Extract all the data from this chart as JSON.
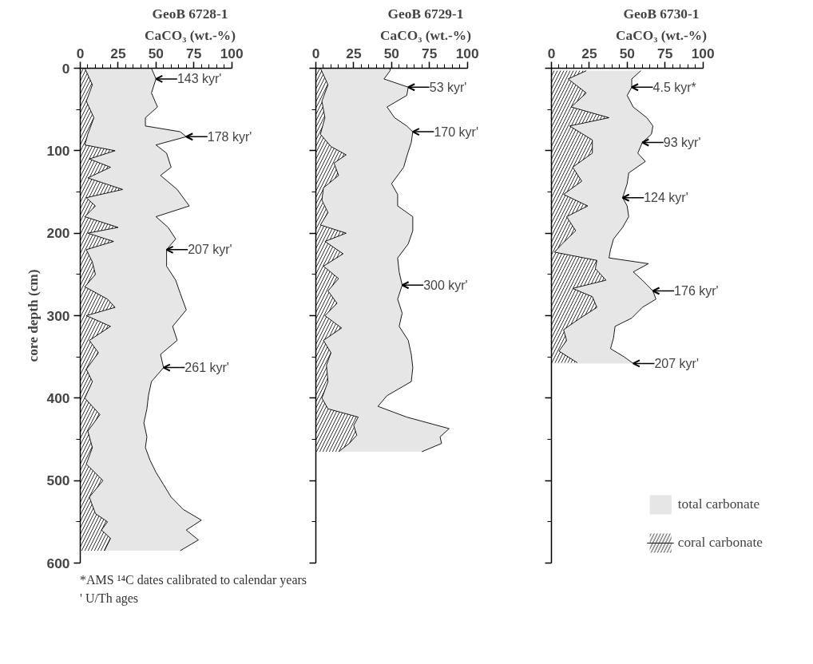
{
  "chart_data": [
    {
      "type": "area",
      "orientation": "horizontal",
      "title": "GeoB 6728-1",
      "xlabel": "CaCO₃ (wt.-%)",
      "ylabel": "core depth (cm)",
      "xlim": [
        0,
        100
      ],
      "xticks": [
        0,
        25,
        50,
        75,
        100
      ],
      "ylim": [
        600,
        0
      ],
      "yticks": [
        0,
        100,
        200,
        300,
        400,
        500,
        600
      ],
      "grid": false,
      "series": [
        {
          "color": "#e6e6e6",
          "x": [
            0,
            13,
            30,
            47,
            60,
            70,
            77,
            83,
            93,
            103,
            120,
            130,
            147,
            167,
            180,
            193,
            207,
            220,
            240,
            257,
            273,
            293,
            313,
            330,
            347,
            363,
            380,
            397,
            413,
            430,
            447,
            460,
            475,
            490,
            505,
            520,
            535,
            548,
            560,
            572,
            585
          ],
          "values": [
            47,
            50,
            47,
            51,
            43,
            43,
            66,
            70,
            50,
            57,
            60,
            53,
            64,
            72,
            50,
            58,
            63,
            57,
            57,
            63,
            66,
            70,
            61,
            64,
            53,
            55,
            47,
            45,
            44,
            42,
            44,
            43,
            46,
            50,
            55,
            60,
            68,
            80,
            70,
            78,
            66
          ]
        },
        {
          "color": "#000000",
          "x": [
            0,
            20,
            40,
            60,
            80,
            93,
            100,
            110,
            120,
            133,
            147,
            157,
            167,
            180,
            193,
            200,
            210,
            220,
            235,
            250,
            265,
            280,
            290,
            300,
            313,
            330,
            345,
            365,
            380,
            400,
            420,
            440,
            460,
            480,
            500,
            520,
            540,
            550,
            560,
            570,
            585
          ],
          "values": [
            3,
            8,
            4,
            9,
            5,
            3,
            23,
            6,
            20,
            5,
            28,
            4,
            10,
            3,
            25,
            5,
            22,
            4,
            8,
            10,
            3,
            18,
            23,
            4,
            20,
            6,
            12,
            4,
            8,
            3,
            13,
            5,
            8,
            4,
            15,
            6,
            10,
            18,
            14,
            20,
            16
          ]
        }
      ],
      "annotations": [
        {
          "text": "143 kyr'",
          "x": 50,
          "y": 13
        },
        {
          "text": "178 kyr'",
          "x": 70,
          "y": 83
        },
        {
          "text": "207 kyr'",
          "x": 57,
          "y": 220
        },
        {
          "text": "261 kyr'",
          "x": 55,
          "y": 363
        },
        "*AMS ¹⁴C dates calibrated to calendar years",
        "' U/Th ages"
      ]
    },
    {
      "type": "area",
      "orientation": "horizontal",
      "title": "GeoB 6729-1",
      "xlabel": "CaCO₃ (wt.-%)",
      "xlim": [
        0,
        100
      ],
      "xticks": [
        0,
        25,
        50,
        75,
        100
      ],
      "ylim": [
        600,
        0
      ],
      "yticks": [
        0,
        100,
        200,
        300,
        400,
        500,
        600
      ],
      "grid": false,
      "tick_labels": "x",
      "series": [
        {
          "color": "#e6e6e6",
          "x": [
            0,
            3,
            13,
            23,
            33,
            47,
            60,
            70,
            77,
            90,
            107,
            120,
            140,
            153,
            167,
            180,
            197,
            213,
            230,
            247,
            263,
            280,
            297,
            313,
            330,
            347,
            363,
            380,
            397,
            410,
            423,
            437,
            447,
            455,
            465
          ],
          "values": [
            49,
            49,
            45,
            61,
            60,
            47,
            52,
            60,
            64,
            63,
            60,
            58,
            50,
            54,
            54,
            64,
            64,
            61,
            54,
            55,
            57,
            54,
            57,
            55,
            61,
            63,
            64,
            63,
            47,
            41,
            60,
            88,
            82,
            83,
            70
          ]
        },
        {
          "color": "#000000",
          "x": [
            0,
            20,
            40,
            60,
            80,
            95,
            105,
            115,
            130,
            145,
            160,
            175,
            190,
            200,
            210,
            225,
            240,
            255,
            270,
            285,
            300,
            315,
            330,
            345,
            360,
            380,
            400,
            413,
            423,
            433,
            445,
            455,
            465
          ],
          "values": [
            3,
            8,
            4,
            6,
            3,
            10,
            20,
            12,
            15,
            5,
            4,
            8,
            3,
            20,
            6,
            18,
            5,
            15,
            8,
            14,
            6,
            17,
            5,
            10,
            7,
            8,
            4,
            8,
            28,
            25,
            27,
            22,
            15
          ]
        }
      ],
      "annotations": [
        {
          "text": "53 kyr'",
          "x": 61,
          "y": 23
        },
        {
          "text": "170 kyr'",
          "x": 64,
          "y": 77
        },
        {
          "text": "300 kyr'",
          "x": 57,
          "y": 263
        }
      ]
    },
    {
      "type": "area",
      "orientation": "horizontal",
      "title": "GeoB 6730-1",
      "xlabel": "CaCO₃ (wt.-%)",
      "xlim": [
        0,
        100
      ],
      "xticks": [
        0,
        25,
        50,
        75,
        100
      ],
      "ylim": [
        600,
        0
      ],
      "yticks": [
        0,
        100,
        200,
        300,
        400,
        500,
        600
      ],
      "grid": false,
      "tick_labels": "x",
      "legend": "bottom right",
      "series": [
        {
          "name": "total carbonate",
          "color": "#e6e6e6",
          "x": [
            3,
            13,
            23,
            33,
            47,
            60,
            70,
            80,
            90,
            103,
            113,
            127,
            140,
            157,
            167,
            180,
            193,
            207,
            220,
            230,
            237,
            247,
            257,
            270,
            280,
            290,
            303,
            313,
            327,
            340,
            350,
            358
          ],
          "values": [
            59,
            53,
            53,
            50,
            54,
            63,
            67,
            66,
            60,
            57,
            62,
            51,
            50,
            47,
            50,
            51,
            47,
            41,
            39,
            38,
            64,
            54,
            60,
            67,
            69,
            60,
            53,
            42,
            41,
            39,
            48,
            54
          ]
        },
        {
          "name": "coral carbonate",
          "color": "#000000",
          "x": [
            3,
            13,
            30,
            47,
            60,
            70,
            87,
            103,
            120,
            137,
            153,
            167,
            180,
            197,
            213,
            223,
            233,
            243,
            257,
            267,
            277,
            290,
            303,
            317,
            330,
            343,
            357
          ],
          "values": [
            23,
            11,
            23,
            13,
            38,
            12,
            27,
            27,
            14,
            20,
            8,
            24,
            10,
            16,
            7,
            2,
            30,
            29,
            36,
            14,
            27,
            30,
            19,
            8,
            10,
            5,
            17
          ]
        }
      ],
      "annotations": [
        {
          "text": "4.5 kyr*",
          "x": 53,
          "y": 23
        },
        {
          "text": "93 kyr'",
          "x": 60,
          "y": 90
        },
        {
          "text": "124 kyr'",
          "x": 47,
          "y": 157
        },
        {
          "text": "176 kyr'",
          "x": 67,
          "y": 270
        },
        {
          "text": "207 kyr'",
          "x": 54,
          "y": 358
        }
      ]
    }
  ]
}
